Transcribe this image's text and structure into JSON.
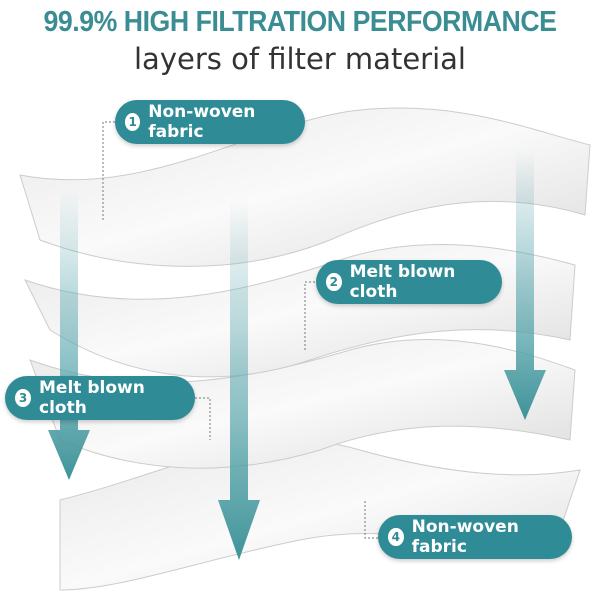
{
  "title": "99.9% HIGH FILTRATION PERFORMANCE",
  "subtitle": "layers of filter material",
  "accent": "#2f8c96",
  "layers": [
    {
      "num": "1",
      "label": "Non-woven fabric"
    },
    {
      "num": "2",
      "label": "Melt blown cloth"
    },
    {
      "num": "3",
      "label": "Melt blown cloth"
    },
    {
      "num": "4",
      "label": "Non-woven fabric"
    }
  ]
}
